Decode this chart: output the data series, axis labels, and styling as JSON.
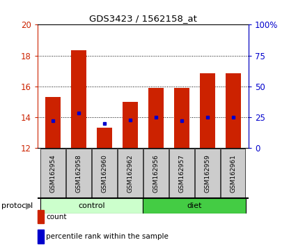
{
  "title": "GDS3423 / 1562158_at",
  "samples": [
    "GSM162954",
    "GSM162958",
    "GSM162960",
    "GSM162962",
    "GSM162956",
    "GSM162957",
    "GSM162959",
    "GSM162961"
  ],
  "count_values": [
    15.3,
    18.35,
    13.35,
    15.0,
    15.9,
    15.9,
    16.85,
    16.85
  ],
  "percentile_values": [
    13.8,
    14.3,
    13.62,
    13.82,
    14.0,
    13.78,
    14.0,
    14.0
  ],
  "bar_bottom": 12,
  "ylim": [
    12,
    20
  ],
  "yticks_left": [
    12,
    14,
    16,
    18,
    20
  ],
  "yticks_right": [
    0,
    25,
    50,
    75,
    100
  ],
  "bar_color": "#cc2200",
  "blue_color": "#0000cc",
  "control_color": "#ccffcc",
  "diet_color": "#44cc44",
  "label_box_color": "#cccccc",
  "protocol_label": "protocol",
  "group_control_count": 4,
  "legend_count_label": "count",
  "legend_percentile_label": "percentile rank within the sample",
  "axis_color_left": "#cc2200",
  "axis_color_right": "#0000cc"
}
